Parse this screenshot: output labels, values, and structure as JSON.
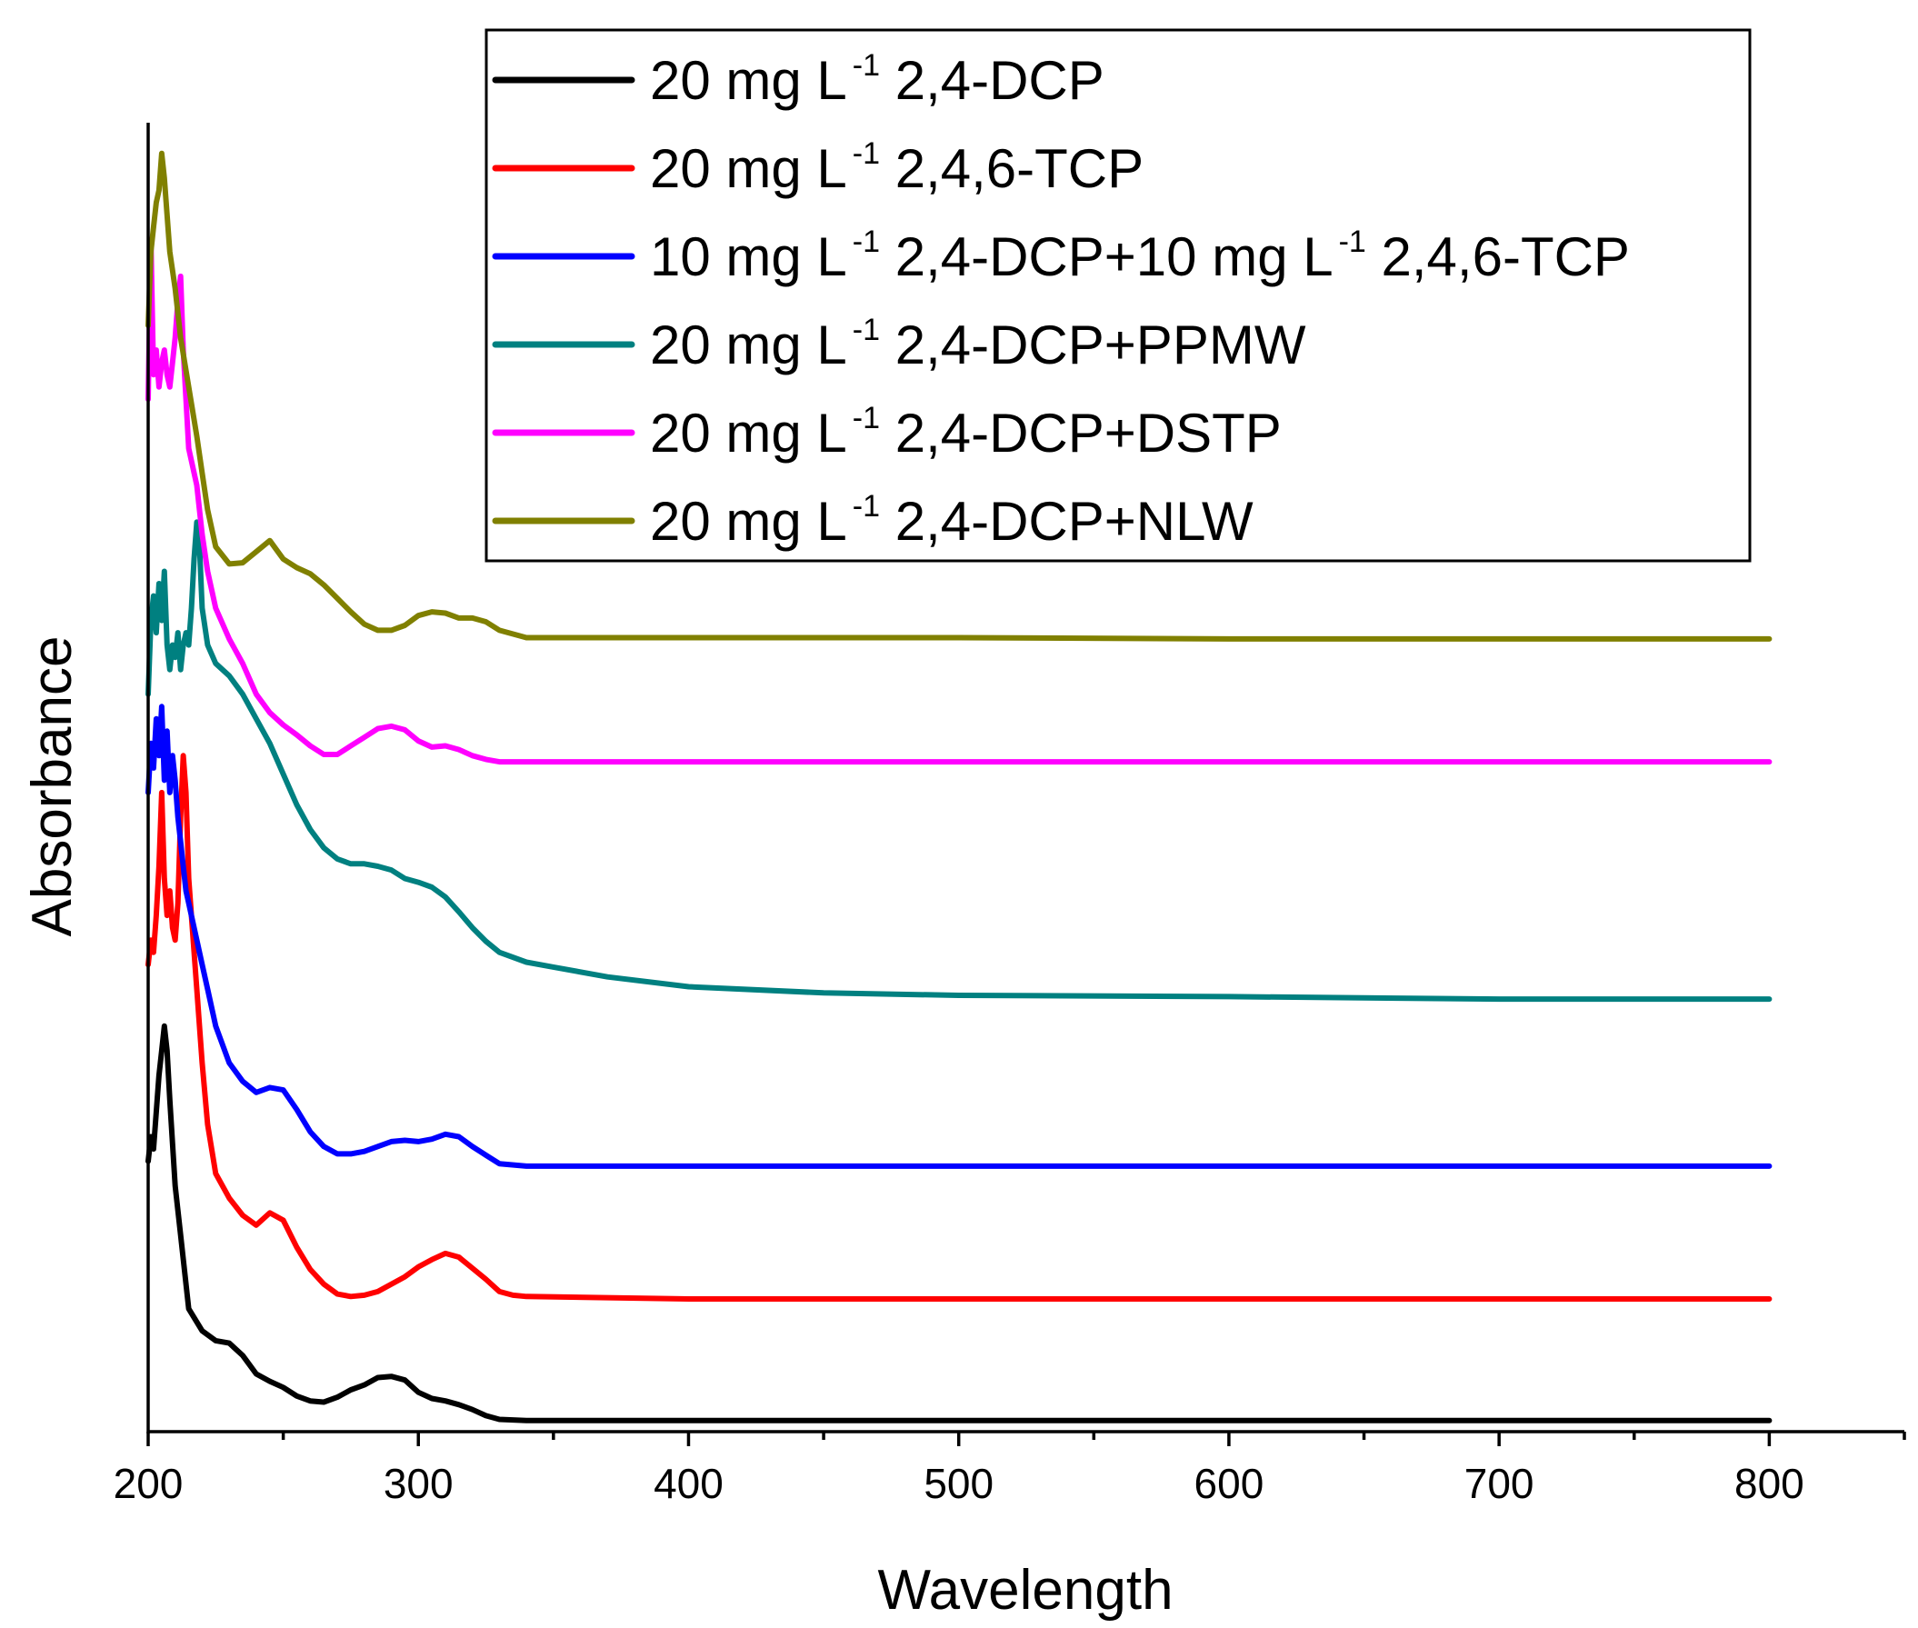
{
  "chart_data": {
    "type": "line",
    "title": "",
    "xlabel": "Wavelength",
    "ylabel": "Absorbance",
    "xlim": [
      200,
      850
    ],
    "ylim": [
      0,
      1.065
    ],
    "xticks": [
      200,
      300,
      400,
      500,
      600,
      700,
      800
    ],
    "xtick_labels": [
      "200",
      "300",
      "400",
      "500",
      "600",
      "700",
      "800"
    ],
    "y_tick_labels_visible": false,
    "grid": false,
    "legend_position": "top-right",
    "series": [
      {
        "name": "20 mg L-1 2,4-DCP",
        "legend": {
          "pre": "20 mg L",
          "sup": "-1",
          "post": " 2,4-DCP"
        },
        "color": "#000000",
        "x": [
          200,
          201,
          202,
          203,
          204,
          205,
          206,
          207,
          208,
          210,
          212,
          215,
          220,
          225,
          230,
          235,
          240,
          245,
          250,
          255,
          260,
          265,
          270,
          275,
          280,
          285,
          290,
          295,
          300,
          305,
          310,
          315,
          320,
          325,
          330,
          340,
          400,
          500,
          600,
          700,
          800
        ],
        "y": [
          0.22,
          0.24,
          0.23,
          0.26,
          0.29,
          0.31,
          0.33,
          0.31,
          0.27,
          0.2,
          0.16,
          0.1,
          0.082,
          0.074,
          0.072,
          0.062,
          0.047,
          0.041,
          0.036,
          0.029,
          0.025,
          0.024,
          0.028,
          0.034,
          0.038,
          0.044,
          0.045,
          0.042,
          0.032,
          0.027,
          0.025,
          0.022,
          0.018,
          0.013,
          0.01,
          0.009,
          0.009,
          0.009,
          0.009,
          0.009,
          0.009
        ]
      },
      {
        "name": "20 mg L-1 2,4,6-TCP",
        "legend": {
          "pre": "20 mg L",
          "sup": "-1",
          "post": " 2,4,6-TCP"
        },
        "color": "#ff0000",
        "x": [
          200,
          201,
          202,
          203,
          204,
          205,
          206,
          207,
          208,
          209,
          210,
          211,
          212,
          213,
          214,
          215,
          218,
          220,
          222,
          225,
          230,
          235,
          240,
          245,
          250,
          255,
          260,
          265,
          270,
          275,
          280,
          285,
          290,
          295,
          300,
          305,
          310,
          315,
          320,
          325,
          330,
          335,
          340,
          400,
          500,
          600,
          700,
          800
        ],
        "y": [
          0.38,
          0.4,
          0.39,
          0.42,
          0.46,
          0.52,
          0.45,
          0.42,
          0.44,
          0.41,
          0.4,
          0.43,
          0.5,
          0.55,
          0.52,
          0.45,
          0.36,
          0.3,
          0.25,
          0.21,
          0.19,
          0.176,
          0.168,
          0.178,
          0.172,
          0.15,
          0.132,
          0.12,
          0.112,
          0.11,
          0.111,
          0.114,
          0.12,
          0.126,
          0.134,
          0.14,
          0.145,
          0.142,
          0.133,
          0.124,
          0.114,
          0.111,
          0.11,
          0.108,
          0.108,
          0.108,
          0.108,
          0.108
        ]
      },
      {
        "name": "10 mg L-1 2,4-DCP+10 mg L-1 2,4,6-TCP",
        "legend": {
          "pre": "10 mg L",
          "sup": "-1",
          "mid": " 2,4-DCP+10 mg L",
          "sup2": "-1",
          "post": " 2,4,6-TCP"
        },
        "color": "#0000ff",
        "x": [
          200,
          201,
          202,
          203,
          204,
          205,
          206,
          207,
          208,
          209,
          210,
          211,
          212,
          213,
          214,
          215,
          218,
          220,
          222,
          225,
          230,
          235,
          240,
          245,
          250,
          255,
          260,
          265,
          270,
          275,
          280,
          285,
          290,
          295,
          300,
          305,
          310,
          315,
          320,
          325,
          330,
          340,
          400,
          500,
          600,
          700,
          800
        ],
        "y": [
          0.52,
          0.56,
          0.54,
          0.58,
          0.55,
          0.59,
          0.53,
          0.57,
          0.52,
          0.55,
          0.53,
          0.5,
          0.48,
          0.46,
          0.44,
          0.43,
          0.4,
          0.38,
          0.36,
          0.33,
          0.3,
          0.285,
          0.276,
          0.28,
          0.278,
          0.262,
          0.244,
          0.232,
          0.226,
          0.226,
          0.228,
          0.232,
          0.236,
          0.237,
          0.236,
          0.238,
          0.242,
          0.24,
          0.232,
          0.225,
          0.218,
          0.216,
          0.216,
          0.216,
          0.216,
          0.216,
          0.216
        ]
      },
      {
        "name": "20 mg L-1 2,4-DCP+PPMW",
        "legend": {
          "pre": "20 mg L",
          "sup": "-1",
          "post": " 2,4-DCP+PPMW"
        },
        "color": "#008080",
        "x": [
          200,
          201,
          202,
          203,
          204,
          205,
          206,
          207,
          208,
          209,
          210,
          211,
          212,
          213,
          214,
          215,
          216,
          217,
          218,
          219,
          220,
          222,
          225,
          230,
          235,
          240,
          245,
          250,
          255,
          260,
          265,
          270,
          275,
          280,
          285,
          290,
          295,
          300,
          305,
          310,
          315,
          320,
          325,
          330,
          340,
          350,
          370,
          400,
          450,
          500,
          600,
          700,
          800
        ],
        "y": [
          0.6,
          0.66,
          0.68,
          0.65,
          0.69,
          0.66,
          0.7,
          0.64,
          0.62,
          0.64,
          0.63,
          0.65,
          0.62,
          0.64,
          0.65,
          0.64,
          0.67,
          0.71,
          0.74,
          0.72,
          0.67,
          0.64,
          0.625,
          0.615,
          0.6,
          0.58,
          0.56,
          0.535,
          0.51,
          0.49,
          0.475,
          0.466,
          0.462,
          0.462,
          0.46,
          0.457,
          0.45,
          0.447,
          0.443,
          0.435,
          0.423,
          0.41,
          0.399,
          0.39,
          0.382,
          0.378,
          0.37,
          0.362,
          0.357,
          0.355,
          0.354,
          0.352,
          0.352
        ]
      },
      {
        "name": "20 mg L-1 2,4-DCP+DSTP",
        "legend": {
          "pre": "20 mg L",
          "sup": "-1",
          "post": " 2,4-DCP+DSTP"
        },
        "color": "#ff00ff",
        "x": [
          200,
          201,
          202,
          203,
          204,
          205,
          206,
          207,
          208,
          209,
          210,
          211,
          212,
          213,
          214,
          215,
          218,
          220,
          222,
          225,
          230,
          235,
          240,
          245,
          250,
          255,
          260,
          265,
          270,
          275,
          280,
          285,
          290,
          295,
          300,
          305,
          310,
          315,
          320,
          325,
          330,
          340,
          400,
          500,
          600,
          700,
          800
        ],
        "y": [
          0.84,
          0.97,
          0.86,
          0.88,
          0.85,
          0.87,
          0.88,
          0.86,
          0.85,
          0.87,
          0.89,
          0.92,
          0.94,
          0.88,
          0.84,
          0.8,
          0.77,
          0.73,
          0.7,
          0.67,
          0.645,
          0.625,
          0.6,
          0.585,
          0.575,
          0.567,
          0.558,
          0.551,
          0.551,
          0.558,
          0.565,
          0.572,
          0.574,
          0.571,
          0.562,
          0.557,
          0.558,
          0.555,
          0.55,
          0.547,
          0.545,
          0.545,
          0.545,
          0.545,
          0.545,
          0.545,
          0.545
        ]
      },
      {
        "name": "20 mg L-1 2,4-DCP+NLW",
        "legend": {
          "pre": "20 mg L",
          "sup": "-1",
          "post": " 2,4-DCP+NLW"
        },
        "color": "#808000",
        "x": [
          200,
          201,
          202,
          203,
          204,
          205,
          206,
          207,
          208,
          210,
          212,
          215,
          218,
          220,
          222,
          225,
          230,
          235,
          240,
          245,
          250,
          255,
          260,
          265,
          270,
          275,
          280,
          285,
          290,
          295,
          300,
          305,
          310,
          315,
          320,
          325,
          330,
          340,
          400,
          500,
          600,
          700,
          800
        ],
        "y": [
          0.9,
          0.96,
          0.98,
          1.0,
          1.01,
          1.04,
          1.02,
          0.99,
          0.96,
          0.93,
          0.89,
          0.85,
          0.81,
          0.78,
          0.75,
          0.72,
          0.706,
          0.707,
          0.716,
          0.725,
          0.71,
          0.703,
          0.698,
          0.689,
          0.678,
          0.667,
          0.657,
          0.652,
          0.652,
          0.656,
          0.664,
          0.667,
          0.666,
          0.662,
          0.662,
          0.659,
          0.652,
          0.646,
          0.646,
          0.646,
          0.645,
          0.645,
          0.645
        ]
      }
    ]
  }
}
